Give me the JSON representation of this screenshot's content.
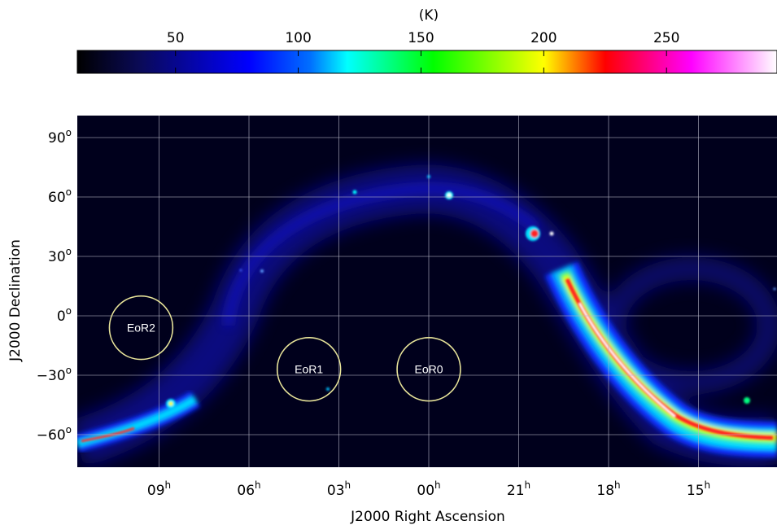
{
  "chart_data": {
    "type": "heatmap",
    "colorbar": {
      "unit": "(K)",
      "ticks": [
        "50",
        "100",
        "150",
        "200",
        "250"
      ],
      "tick_values": [
        50,
        100,
        150,
        200,
        250
      ],
      "range": [
        10,
        295
      ],
      "colors": [
        "#000000",
        "#0a0a55",
        "#0000ff",
        "#0070ff",
        "#00ffff",
        "#00ff00",
        "#ffff00",
        "#ff0000",
        "#ff00ff",
        "#ffffff"
      ],
      "color_stops": [
        10,
        35,
        80,
        105,
        120,
        155,
        200,
        225,
        260,
        295
      ]
    },
    "x_axis": {
      "label": "J2000 Right Ascension",
      "ticks": [
        {
          "hour": 9,
          "text": "09",
          "sup": "h"
        },
        {
          "hour": 6,
          "text": "06",
          "sup": "h"
        },
        {
          "hour": 3,
          "text": "03",
          "sup": "h"
        },
        {
          "hour": 0,
          "text": "00",
          "sup": "h"
        },
        {
          "hour": 21,
          "text": "21",
          "sup": "h"
        },
        {
          "hour": 18,
          "text": "18",
          "sup": "h"
        },
        {
          "hour": 15,
          "text": "15",
          "sup": "h"
        }
      ]
    },
    "y_axis": {
      "label": "J2000 Declination",
      "ylim": [
        -75,
        100
      ],
      "ticks": [
        {
          "value": 90,
          "text": "90",
          "sup": "o"
        },
        {
          "value": 60,
          "text": "60",
          "sup": "o"
        },
        {
          "value": 30,
          "text": "30",
          "sup": "o"
        },
        {
          "value": 0,
          "text": "0",
          "sup": "o"
        },
        {
          "value": -30,
          "text": "−30",
          "sup": "o"
        },
        {
          "value": -60,
          "text": "−60",
          "sup": "o"
        }
      ]
    },
    "grid": true,
    "fields": [
      {
        "name": "EoR2",
        "ra_hours": 9.6,
        "dec": -6,
        "radius_deg": 16
      },
      {
        "name": "EoR1",
        "ra_hours": 4.0,
        "dec": -27,
        "radius_deg": 16
      },
      {
        "name": "EoR0",
        "ra_hours": 0.0,
        "dec": -27,
        "radius_deg": 16
      }
    ]
  }
}
